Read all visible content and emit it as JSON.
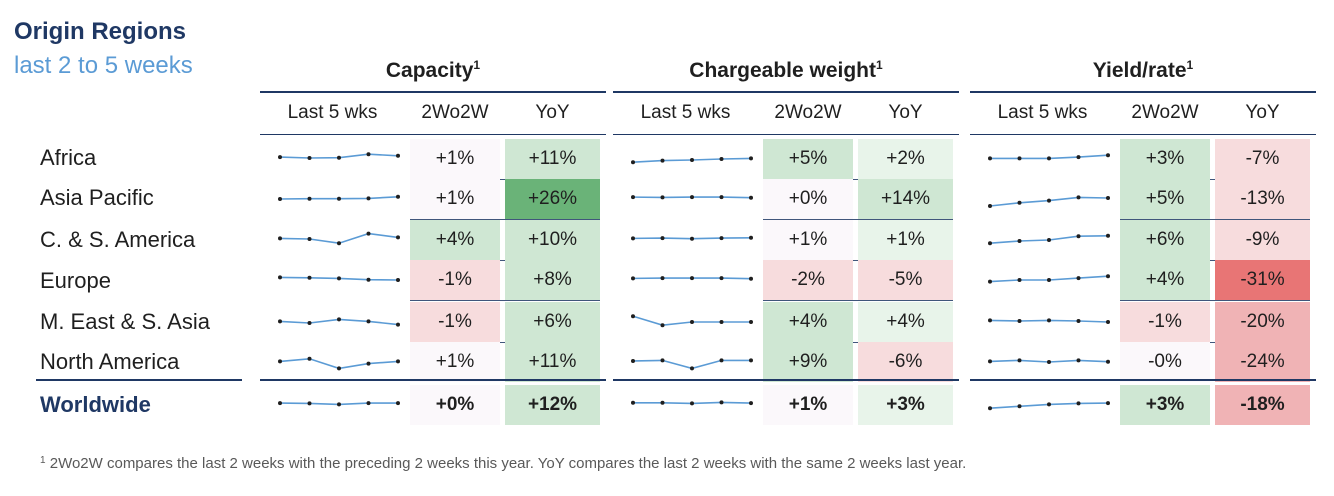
{
  "title": "Origin Regions",
  "subtitle": "last 2 to 5 weeks",
  "footnote_mark": "1",
  "footnote": "2Wo2W compares the last 2 weeks with the preceding 2 weeks this year. YoY compares the last 2 weeks with the same 2 weeks last year.",
  "colors": {
    "navy": "#1f3864",
    "blue": "#5b9bd5",
    "green_strong": "#6ab378",
    "green_mid": "#cfe7d3",
    "green_light": "#e8f4ea",
    "neutral": "#fbf8fb",
    "red_strong": "#e87575",
    "red_mid": "#f0b3b5",
    "red_light": "#f7dcdd"
  },
  "chart_data": {
    "type": "table",
    "title": "Origin Regions",
    "subtitle": "last 2 to 5 weeks",
    "groups": [
      {
        "key": "capacity",
        "title": "Capacity",
        "mark": "1"
      },
      {
        "key": "chargeable_weight",
        "title": "Chargeable weight",
        "mark": "1"
      },
      {
        "key": "yield_rate",
        "title": "Yield/rate",
        "mark": "1"
      }
    ],
    "columns": [
      "Last 5 wks",
      "2Wo2W",
      "YoY"
    ],
    "rows": [
      {
        "region": "Africa",
        "capacity": {
          "trend": [
            56,
            53,
            54,
            65,
            60
          ],
          "wow": "+1%",
          "yoy": "+11%",
          "wow_v": 1,
          "yoy_v": 11
        },
        "chargeable_weight": {
          "trend": [
            40,
            45,
            47,
            50,
            52
          ],
          "wow": "+5%",
          "yoy": "+2%",
          "wow_v": 5,
          "yoy_v": 2
        },
        "yield_rate": {
          "trend": [
            52,
            52,
            52,
            56,
            62
          ],
          "wow": "+3%",
          "yoy": "-7%",
          "wow_v": 3,
          "yoy_v": -7
        }
      },
      {
        "region": "Asia Pacific",
        "capacity": {
          "trend": [
            50,
            51,
            51,
            52,
            57
          ],
          "wow": "+1%",
          "yoy": "+26%",
          "wow_v": 1,
          "yoy_v": 26
        },
        "chargeable_weight": {
          "trend": [
            56,
            55,
            56,
            56,
            54
          ],
          "wow": "+0%",
          "yoy": "+14%",
          "wow_v": 0,
          "yoy_v": 14
        },
        "yield_rate": {
          "trend": [
            28,
            38,
            45,
            55,
            53
          ],
          "wow": "+5%",
          "yoy": "-13%",
          "wow_v": 5,
          "yoy_v": -13
        }
      },
      {
        "region": "C. & S. America",
        "capacity": {
          "trend": [
            55,
            53,
            40,
            70,
            58
          ],
          "wow": "+4%",
          "yoy": "+10%",
          "wow_v": 4,
          "yoy_v": 10
        },
        "chargeable_weight": {
          "trend": [
            55,
            56,
            54,
            56,
            57
          ],
          "wow": "+1%",
          "yoy": "+1%",
          "wow_v": 1,
          "yoy_v": 1
        },
        "yield_rate": {
          "trend": [
            40,
            47,
            50,
            62,
            63
          ],
          "wow": "+6%",
          "yoy": "-9%",
          "wow_v": 6,
          "yoy_v": -9
        }
      },
      {
        "region": "Europe",
        "capacity": {
          "trend": [
            58,
            57,
            55,
            51,
            50
          ],
          "wow": "-1%",
          "yoy": "+8%",
          "wow_v": -1,
          "yoy_v": 8
        },
        "chargeable_weight": {
          "trend": [
            55,
            56,
            56,
            56,
            54
          ],
          "wow": "-2%",
          "yoy": "-5%",
          "wow_v": -2,
          "yoy_v": -5
        },
        "yield_rate": {
          "trend": [
            45,
            50,
            50,
            56,
            62
          ],
          "wow": "+4%",
          "yoy": "-31%",
          "wow_v": 4,
          "yoy_v": -31
        }
      },
      {
        "region": "M. East & S. Asia",
        "capacity": {
          "trend": [
            52,
            47,
            58,
            52,
            42
          ],
          "wow": "-1%",
          "yoy": "+6%",
          "wow_v": -1,
          "yoy_v": 6
        },
        "chargeable_weight": {
          "trend": [
            68,
            40,
            50,
            50,
            50
          ],
          "wow": "+4%",
          "yoy": "+4%",
          "wow_v": 4,
          "yoy_v": 4
        },
        "yield_rate": {
          "trend": [
            55,
            53,
            55,
            53,
            50
          ],
          "wow": "-1%",
          "yoy": "-20%",
          "wow_v": -1,
          "yoy_v": -20
        }
      },
      {
        "region": "North America",
        "capacity": {
          "trend": [
            52,
            60,
            30,
            45,
            52
          ],
          "wow": "+1%",
          "yoy": "+11%",
          "wow_v": 1,
          "yoy_v": 11
        },
        "chargeable_weight": {
          "trend": [
            53,
            55,
            30,
            55,
            55
          ],
          "wow": "+9%",
          "yoy": "-6%",
          "wow_v": 9,
          "yoy_v": -6
        },
        "yield_rate": {
          "trend": [
            52,
            55,
            50,
            55,
            51
          ],
          "wow": "-0%",
          "yoy": "-24%",
          "wow_v": 0,
          "yoy_v": -24
        }
      },
      {
        "region": "Worldwide",
        "capacity": {
          "trend": [
            56,
            55,
            52,
            56,
            56
          ],
          "wow": "+0%",
          "yoy": "+12%",
          "wow_v": 0,
          "yoy_v": 12
        },
        "chargeable_weight": {
          "trend": [
            57,
            57,
            55,
            58,
            56
          ],
          "wow": "+1%",
          "yoy": "+3%",
          "wow_v": 1,
          "yoy_v": 3
        },
        "yield_rate": {
          "trend": [
            40,
            46,
            52,
            55,
            56
          ],
          "wow": "+3%",
          "yoy": "-18%",
          "wow_v": 3,
          "yoy_v": -18
        }
      }
    ]
  }
}
